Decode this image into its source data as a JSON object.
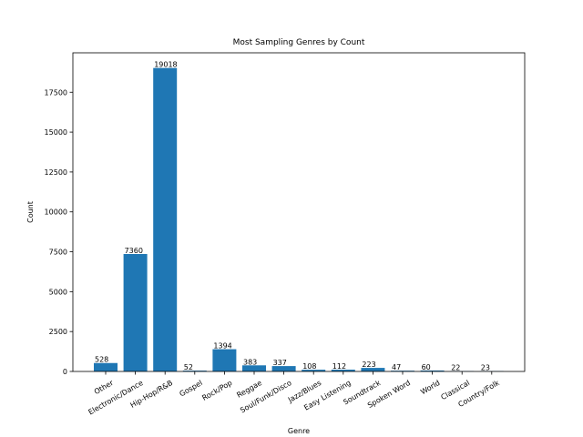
{
  "chart_data": {
    "type": "bar",
    "title": "Most Sampling Genres by Count",
    "xlabel": "Genre",
    "ylabel": "Count",
    "categories": [
      "Other",
      "Electronic/Dance",
      "Hip-Hop/R&B",
      "Gospel",
      "Rock/Pop",
      "Reggae",
      "Soul/Funk/Disco",
      "Jazz/Blues",
      "Easy Listening",
      "Soundtrack",
      "Spoken Word",
      "World",
      "Classical",
      "Country/Folk"
    ],
    "values": [
      528,
      7360,
      19018,
      52,
      1394,
      383,
      337,
      108,
      112,
      223,
      47,
      60,
      22,
      23
    ],
    "ylim": [
      0,
      19969
    ],
    "yticks": [
      0,
      2500,
      5000,
      7500,
      10000,
      12500,
      15000,
      17500
    ],
    "bar_color": "#1f77b4",
    "grid": false,
    "legend": "none"
  }
}
